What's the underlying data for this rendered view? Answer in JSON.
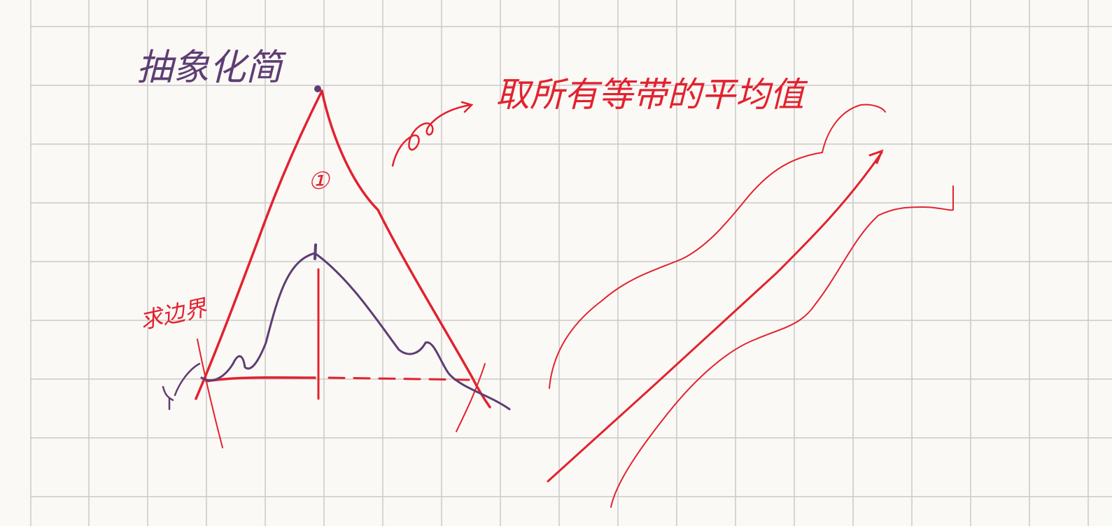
{
  "page": {
    "background": "#fbf9f5",
    "grid_color": "#c9c9c9"
  },
  "notes": {
    "title": "抽象化简",
    "average_note": "取所有等带的平均值",
    "boundary_note": "求边界",
    "region_label": "①"
  },
  "colors": {
    "red_ink": "#e2222f",
    "purple_ink": "#5e3d74"
  }
}
